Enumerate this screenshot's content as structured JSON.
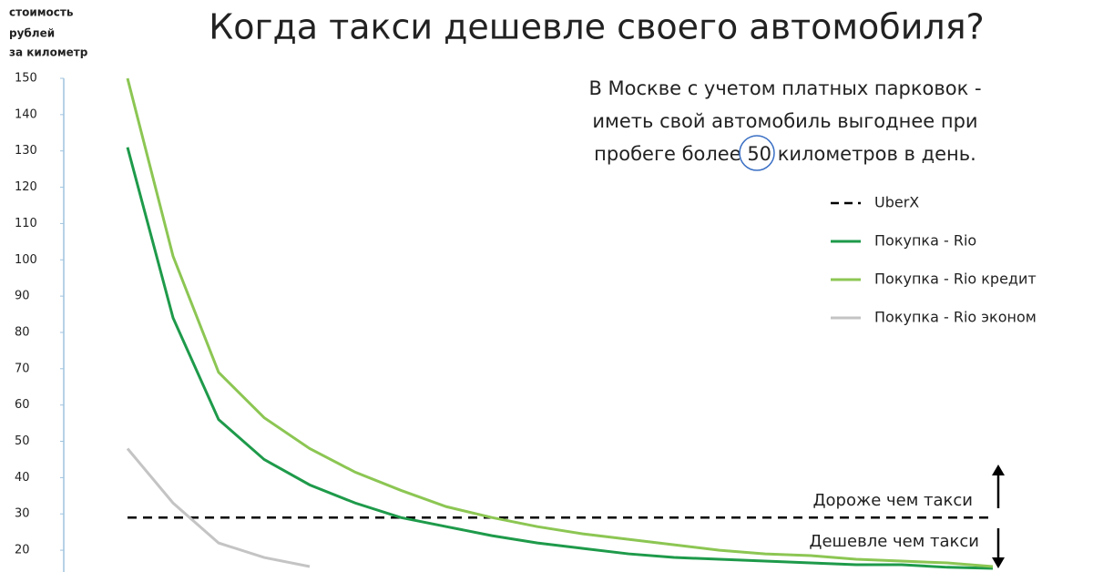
{
  "chart_data": {
    "type": "line",
    "title": "Когда такси дешевле своего автомобиля?",
    "subtitle": [
      "В Москве с учетом платных парковок -",
      "иметь свой автомобиль выгоднее при",
      "пробеге более 50 километров в день."
    ],
    "y_label": [
      "стоимость",
      "рублей",
      "за километр"
    ],
    "annotations": [
      "Дороже чем такси",
      "Дешевле чем такси"
    ],
    "categories": [
      null,
      null,
      null,
      null,
      null,
      null,
      null,
      null,
      null,
      null,
      null,
      null,
      null,
      null,
      null,
      null,
      null,
      null,
      null,
      null
    ],
    "series": [
      {
        "name": "UberX",
        "color": "#000000",
        "dash": true,
        "values": [
          29,
          29,
          29,
          29,
          29,
          29,
          29,
          29,
          29,
          29,
          29,
          29,
          29,
          29,
          29,
          29,
          29,
          29,
          29,
          29
        ]
      },
      {
        "name": "Покупка - Rio",
        "color": "#1e9a4a",
        "dash": false,
        "values": [
          131,
          84,
          56,
          45,
          38,
          33,
          29,
          26.5,
          24,
          22,
          20.5,
          19,
          18,
          17.5,
          17,
          16.5,
          16,
          16,
          15.3,
          15
        ]
      },
      {
        "name": "Покупка - Rio кредит",
        "color": "#8cc653",
        "dash": false,
        "values": [
          150,
          101,
          69,
          56.5,
          48,
          41.5,
          36.5,
          32,
          29,
          26.5,
          24.5,
          23,
          21.5,
          20,
          19,
          18.5,
          17.5,
          17,
          16.5,
          15.5
        ]
      },
      {
        "name": "Покупка - Rio эконом",
        "color": "#c4c4c4",
        "dash": false,
        "values": [
          48,
          33,
          22,
          18,
          15.5,
          null,
          null,
          null,
          null,
          null,
          null,
          null,
          null,
          null,
          null,
          null,
          null,
          null,
          null,
          null
        ]
      }
    ],
    "ylim": [
      14.5,
      150
    ],
    "yticks": [
      20,
      30,
      40,
      50,
      60,
      70,
      80,
      90,
      100,
      110,
      120,
      130,
      140,
      150
    ],
    "grid": false
  }
}
